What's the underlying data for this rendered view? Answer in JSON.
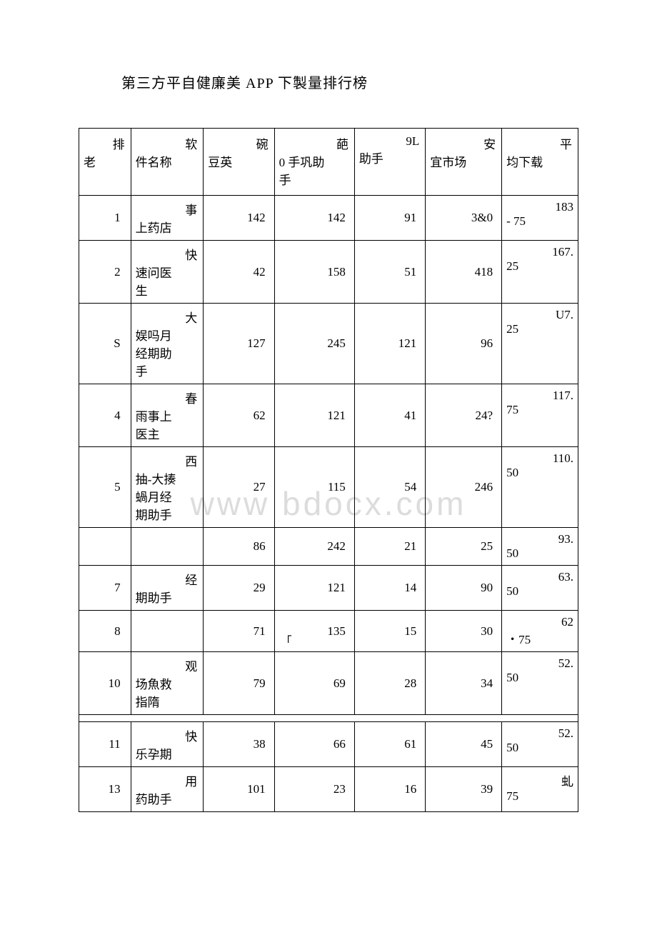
{
  "title": "第三方平自健廉美 APP 下製量排行榜",
  "watermark": "www bdocx.com",
  "headers": {
    "rank": {
      "l1": "排",
      "l2": "老"
    },
    "name": {
      "l1": "软",
      "l2": "件名称"
    },
    "c1": {
      "l1": "碗",
      "l2": "豆英"
    },
    "c2": {
      "l1": "葩",
      "l2": "0 手巩助",
      "l3": "手"
    },
    "c3": {
      "l1": "9L",
      "l2": "助手"
    },
    "c4": {
      "l1": "安",
      "l2": "宜市场"
    },
    "avg": {
      "l1": "平",
      "l2": "均下载"
    }
  },
  "rows": [
    {
      "rank": "1",
      "name_l1": "事",
      "name_l2": "上药店",
      "c1": "142",
      "c2": "142",
      "c3": "91",
      "c4": "3&0",
      "avg_l1": "183",
      "avg_l2": "- 75"
    },
    {
      "rank": "2",
      "name_l1": "快",
      "name_l2": "速问医",
      "name_l3": "生",
      "c1": "42",
      "c2": "158",
      "c3": "51",
      "c4": "418",
      "avg_l1": "167.",
      "avg_l2": "25"
    },
    {
      "rank": "S",
      "name_l1": "大",
      "name_l2": "娱吗月",
      "name_l3": "经期助",
      "name_l4": "手",
      "c1": "127",
      "c2": "245",
      "c3": "121",
      "c4": "96",
      "avg_l1": "U7.",
      "avg_l2": "25"
    },
    {
      "rank": "4",
      "name_l1": "春",
      "name_l2": "雨事上",
      "name_l3": "医主",
      "c1": "62",
      "c2": "121",
      "c3": "41",
      "c4": "24?",
      "avg_l1": "117.",
      "avg_l2": "75"
    },
    {
      "rank": "5",
      "name_l1": "西",
      "name_l2": "抽-大揍",
      "name_l3": "蝸月经",
      "name_l4": "期助手",
      "c1": "27",
      "c2": "115",
      "c3": "54",
      "c4": "246",
      "avg_l1": "110.",
      "avg_l2": "50"
    },
    {
      "rank": "",
      "name_l1": "",
      "c1": "86",
      "c2": "242",
      "c3": "21",
      "c4": "25",
      "avg_l1": "93.",
      "avg_l2": "50"
    },
    {
      "rank": "7",
      "name_l1": "经",
      "name_l2": "期助手",
      "c1": "29",
      "c2": "121",
      "c3": "14",
      "c4": "90",
      "avg_l1": "63.",
      "avg_l2": "50"
    },
    {
      "rank": "8",
      "name_l1": "",
      "c1": "71",
      "c2": "135",
      "c2_bracket": "「",
      "c3": "15",
      "c4": "30",
      "avg_l1": "62",
      "avg_l2": "・75"
    },
    {
      "rank": "10",
      "name_l1": "观",
      "name_l2": "场魚救",
      "name_l3": "指隋",
      "c1": "79",
      "c2": "69",
      "c3": "28",
      "c4": "34",
      "avg_l1": "52.",
      "avg_l2": "50"
    },
    {
      "separator": true
    },
    {
      "rank": "11",
      "name_l1": "快",
      "name_l2": "乐孕期",
      "c1": "38",
      "c2": "66",
      "c3": "61",
      "c4": "45",
      "avg_l1": "52.",
      "avg_l2": "50"
    },
    {
      "rank": "13",
      "name_l1": "用",
      "name_l2": "药助手",
      "c1": "101",
      "c2": "23",
      "c3": "16",
      "c4": "39",
      "avg_l1": "虬",
      "avg_l2": "75"
    }
  ]
}
